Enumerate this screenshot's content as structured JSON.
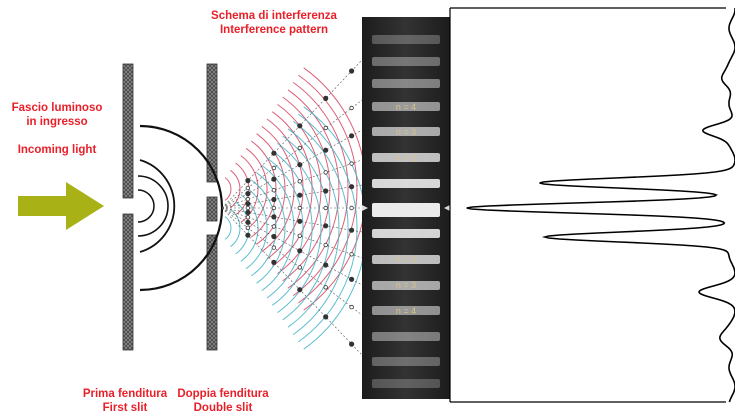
{
  "labels": {
    "incoming_it_line1": "Fascio luminoso",
    "incoming_it_line2": "in ingresso",
    "incoming_en": "Incoming light",
    "pattern_it": "Schema di interferenza",
    "pattern_en": "Interference pattern",
    "first_slit_it": "Prima fenditura",
    "first_slit_en": "First slit",
    "double_slit_it": "Doppia fenditura",
    "double_slit_en": "Double slit"
  },
  "fringe_orders": {
    "upper": [
      "n = 4",
      "n = 3",
      "n = 2"
    ],
    "lower": [
      "n = 2",
      "n = 3",
      "n = 4"
    ]
  },
  "colors": {
    "label_red": "#e8202a",
    "arrow_olive": "#a8b216",
    "wave_red": "#d8435f",
    "wave_cyan": "#41b3c7",
    "screen_dark": "#2b2b2b"
  }
}
